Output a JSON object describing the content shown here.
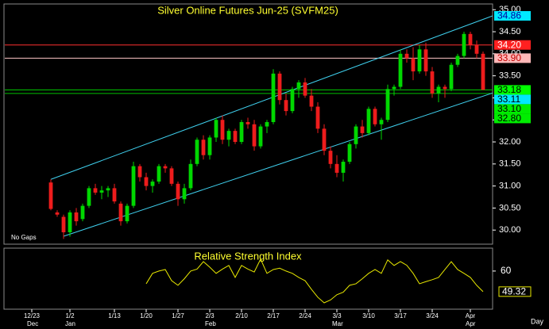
{
  "chart_data": [
    {
      "type": "candlestick",
      "title": "Silver Online Futures Jun-25 (SVFM25)",
      "annotation": "No Gaps",
      "x": [
        3,
        4,
        5,
        6,
        7,
        8,
        9,
        10,
        11,
        12,
        13,
        14,
        15,
        16,
        17,
        18,
        19,
        20,
        21,
        22,
        23,
        24,
        25,
        26,
        27,
        28,
        29,
        30,
        31,
        32,
        33,
        34,
        35,
        36,
        37,
        38,
        39,
        40,
        41,
        42,
        43,
        44,
        45,
        46,
        47,
        48,
        49,
        50,
        51,
        52,
        53,
        54,
        55,
        56,
        57,
        58,
        59,
        60,
        61,
        62,
        63,
        64,
        65,
        66,
        67,
        68,
        69,
        70,
        71
      ],
      "open": [
        31.08,
        30.4,
        30.3,
        29.95,
        30.4,
        30.25,
        30.55,
        30.95,
        30.85,
        30.9,
        30.95,
        30.6,
        30.2,
        30.55,
        31.45,
        31.2,
        31.0,
        31.1,
        31.45,
        31.4,
        31.05,
        30.7,
        30.95,
        31.5,
        32.05,
        31.7,
        32.1,
        32.5,
        32.05,
        32.25,
        32.0,
        32.45,
        32.4,
        31.9,
        32.35,
        32.45,
        33.55,
        32.95,
        32.7,
        33.2,
        33.35,
        33.05,
        32.8,
        32.3,
        31.8,
        31.5,
        31.3,
        31.55,
        31.95,
        32.35,
        32.2,
        32.75,
        32.4,
        32.5,
        33.2,
        33.25,
        34.0,
        33.9,
        33.6,
        34.1,
        33.6,
        33.1,
        33.25,
        33.2,
        33.75,
        33.95,
        34.45,
        34.2,
        34.0
      ],
      "high": [
        31.15,
        30.45,
        30.35,
        30.45,
        30.5,
        30.6,
        31.0,
        31.05,
        31.0,
        31.0,
        31.05,
        30.65,
        30.6,
        31.55,
        31.5,
        31.3,
        31.15,
        31.5,
        31.5,
        31.45,
        31.1,
        31.05,
        31.6,
        32.1,
        32.15,
        32.15,
        32.55,
        32.6,
        32.3,
        32.3,
        32.5,
        32.55,
        32.5,
        32.4,
        32.5,
        33.65,
        33.6,
        33.1,
        33.25,
        33.4,
        33.45,
        33.2,
        32.9,
        32.4,
        31.9,
        31.7,
        31.6,
        32.0,
        32.4,
        32.5,
        32.8,
        32.8,
        32.55,
        33.3,
        33.3,
        34.1,
        34.1,
        34.15,
        34.2,
        34.25,
        33.7,
        33.3,
        33.3,
        33.8,
        34.0,
        34.5,
        34.5,
        34.3,
        34.05
      ],
      "low": [
        30.45,
        30.3,
        29.8,
        29.85,
        30.1,
        30.2,
        30.5,
        30.8,
        30.7,
        30.75,
        30.6,
        30.1,
        30.15,
        30.5,
        31.1,
        30.9,
        30.85,
        31.05,
        31.3,
        31.0,
        30.55,
        30.6,
        30.9,
        31.45,
        31.6,
        31.6,
        32.0,
        31.95,
        31.9,
        31.95,
        31.95,
        32.3,
        31.8,
        31.85,
        32.2,
        32.4,
        32.85,
        32.6,
        32.65,
        33.0,
        33.0,
        32.7,
        32.2,
        31.7,
        31.4,
        31.2,
        31.1,
        31.5,
        31.85,
        32.1,
        32.15,
        32.35,
        32.05,
        32.45,
        33.05,
        33.2,
        33.8,
        33.4,
        33.55,
        33.5,
        33.0,
        32.9,
        33.0,
        33.15,
        33.7,
        33.9,
        34.1,
        33.9,
        33.2
      ],
      "close": [
        30.48,
        30.35,
        29.95,
        30.4,
        30.2,
        30.55,
        30.95,
        30.85,
        30.9,
        30.95,
        30.65,
        30.2,
        30.55,
        31.45,
        31.2,
        31.0,
        31.1,
        31.45,
        31.4,
        31.05,
        30.7,
        30.95,
        31.5,
        32.05,
        31.7,
        32.1,
        32.5,
        32.05,
        32.25,
        32.0,
        32.45,
        32.4,
        31.9,
        32.35,
        32.45,
        33.55,
        32.95,
        32.7,
        33.2,
        33.35,
        33.05,
        32.8,
        32.3,
        31.8,
        31.5,
        31.3,
        31.55,
        31.95,
        32.35,
        32.2,
        32.75,
        32.4,
        32.5,
        33.2,
        33.25,
        34.0,
        33.9,
        33.6,
        34.1,
        33.6,
        33.1,
        33.25,
        33.2,
        33.75,
        33.95,
        34.45,
        34.2,
        34.0,
        33.18
      ],
      "up_color": "#00d800",
      "down_color": "#ee1c1c",
      "xlim": [
        -4.375,
        72.5
      ],
      "ylim": [
        29.68,
        35.13
      ],
      "yticks": [
        {
          "value": 30,
          "label": "30.00"
        },
        {
          "value": 30.5,
          "label": "30.50"
        },
        {
          "value": 31,
          "label": "31.00"
        },
        {
          "value": 31.5,
          "label": "31.50"
        },
        {
          "value": 32,
          "label": "32.00"
        },
        {
          "value": 32.5,
          "label": "32.50"
        },
        {
          "value": 33,
          "label": "33.00"
        },
        {
          "value": 33.5,
          "label": "33.50"
        },
        {
          "value": 34,
          "label": "34.00"
        },
        {
          "value": 34.5,
          "label": "34.50"
        },
        {
          "value": 35,
          "label": "35.00"
        }
      ],
      "channel_color": "#3fd0ee",
      "channel": [
        {
          "x": [
            3,
            72.5
          ],
          "values": [
            31.15,
            34.86
          ]
        },
        {
          "x": [
            5,
            72.5
          ],
          "values": [
            29.86,
            33.11
          ]
        }
      ],
      "markers": [
        {
          "value": 34.86,
          "label": "34.86",
          "bg": "#00e8ff",
          "fg": "#0000a0"
        },
        {
          "value": 34.2,
          "label": "34.20",
          "bg": "#ff2020",
          "fg": "#ffffff",
          "line_color": "#ff3030"
        },
        {
          "value": 33.9,
          "label": "33.90",
          "bg": "#ffb8b8",
          "fg": "#c00000",
          "line_color": "#ffc8c8"
        },
        {
          "value": 33.18,
          "label": "33.18",
          "bg": "#00ff00",
          "fg": "#000000",
          "line_color": "#00d000"
        },
        {
          "value": 33.11,
          "label": "33.11",
          "bg": "#00e8ff",
          "fg": "#000000"
        },
        {
          "value": 33.1,
          "label": "33.10",
          "bg": "#00ee00",
          "fg": "#000000",
          "line_color": "#00c000"
        },
        {
          "value": 32.8,
          "label": "32.80",
          "bg": "#00ee00",
          "fg": "#000000"
        }
      ]
    },
    {
      "type": "line",
      "title": "Relative Strength Index",
      "color": "#e8e800",
      "x": [
        18,
        19,
        20,
        21,
        22,
        23,
        24,
        25,
        26,
        27,
        28,
        29,
        30,
        31,
        32,
        33,
        34,
        35,
        36,
        37,
        38,
        39,
        40,
        41,
        42,
        43,
        44,
        45,
        46,
        47,
        48,
        49,
        50,
        51,
        52,
        53,
        54,
        55,
        56,
        57,
        58,
        59,
        60,
        61,
        62,
        63,
        64,
        65,
        66,
        67,
        68,
        69,
        70,
        71
      ],
      "values": [
        53.4,
        58.8,
        60,
        60.8,
        55,
        52.6,
        56,
        60,
        61,
        64.9,
        62,
        58.8,
        61,
        62.9,
        56.7,
        62.9,
        61,
        59.5,
        66.2,
        58.8,
        60.8,
        61.5,
        60,
        58.8,
        56.7,
        55,
        50.5,
        46.4,
        43.5,
        45,
        47.7,
        49,
        52.6,
        53.4,
        56,
        58.8,
        60.8,
        58.8,
        65.8,
        62.9,
        64.9,
        63,
        58.8,
        53.4,
        54.5,
        55.5,
        56.7,
        60.8,
        64.9,
        60.8,
        58.8,
        56.7,
        52.6,
        49.32
      ],
      "last_value": 49.32,
      "xlim": [
        -4.375,
        72.5
      ],
      "ylim": [
        40.2,
        71.9
      ],
      "yticks": [
        60
      ],
      "xticks": [
        {
          "value": 0,
          "label": "12/23"
        },
        {
          "value": 6,
          "label": "1/2"
        },
        {
          "value": 13,
          "label": "1/13"
        },
        {
          "value": 18,
          "label": "1/20"
        },
        {
          "value": 23,
          "label": "1/27"
        },
        {
          "value": 28,
          "label": "2/3"
        },
        {
          "value": 33,
          "label": "2/10"
        },
        {
          "value": 38,
          "label": "2/17"
        },
        {
          "value": 43,
          "label": "2/24"
        },
        {
          "value": 48,
          "label": "3/3"
        },
        {
          "value": 53,
          "label": "3/10"
        },
        {
          "value": 58,
          "label": "3/17"
        },
        {
          "value": 63,
          "label": "3/24"
        },
        {
          "value": 69,
          "label": "Apr"
        }
      ],
      "month_ticks": [
        {
          "value": 0,
          "label": "Dec"
        },
        {
          "value": 6,
          "label": "Jan"
        },
        {
          "value": 28,
          "label": "Feb"
        },
        {
          "value": 48,
          "label": "Mar"
        },
        {
          "value": 69,
          "label": "Apr"
        }
      ],
      "x_label": "Day"
    }
  ]
}
